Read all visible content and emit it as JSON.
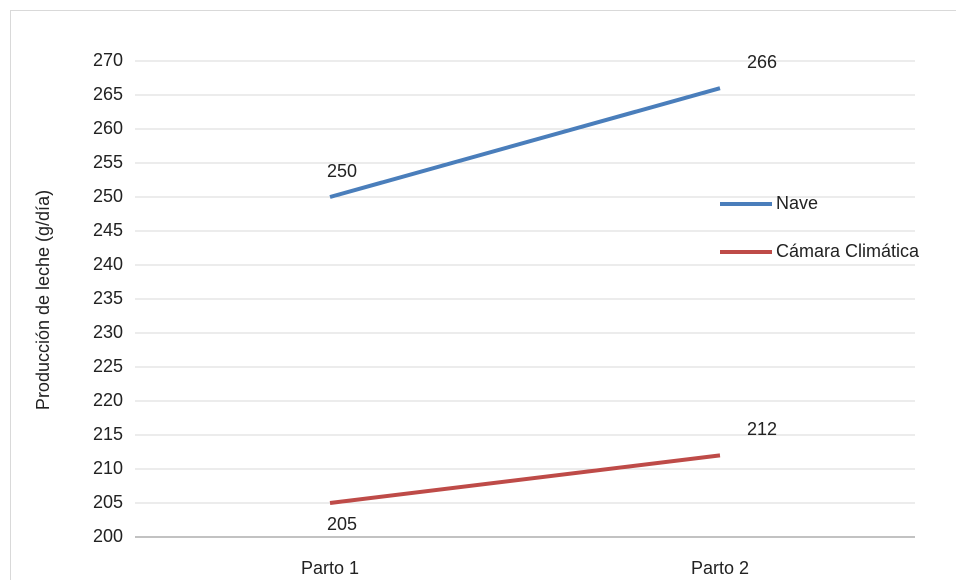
{
  "chart_data": {
    "type": "line",
    "y_label": "Producción de leche (g/día)",
    "categories": [
      "Parto 1",
      "Parto 2"
    ],
    "series": [
      {
        "name": "Nave",
        "color": "#4a7ebb",
        "values": [
          250,
          266
        ]
      },
      {
        "name": "Cámara Climática",
        "color": "#be4b48",
        "values": [
          205,
          212
        ]
      }
    ],
    "ylim": [
      200,
      270
    ],
    "yticks": [
      200,
      205,
      210,
      215,
      220,
      225,
      230,
      235,
      240,
      245,
      250,
      255,
      260,
      265,
      270
    ],
    "grid": true,
    "data_labels": true,
    "legend": "right"
  }
}
